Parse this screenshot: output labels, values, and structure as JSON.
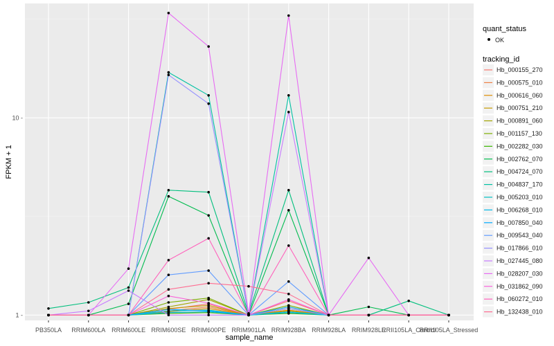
{
  "chart_data": {
    "type": "line",
    "xlabel": "sample_name",
    "ylabel": "FPKM + 1",
    "yscale": "log10",
    "ylim": [
      0.94,
      38
    ],
    "y_ticks": [
      1,
      10
    ],
    "y_tick_labels": [
      "1 -",
      "10 -"
    ],
    "categories": [
      "PB350LA",
      "RRIM600LA",
      "RRIM600LE",
      "RRIM600SE",
      "RRIM600PE",
      "RRIM901LA",
      "RRIM928BA",
      "RRIM928LA",
      "RRIM928LE",
      "RRII105LA_Control",
      "RRII105LA_Stressed"
    ],
    "legend": {
      "point_title": "quant_status",
      "point_label": "OK",
      "color_title": "tracking_id"
    },
    "series": [
      {
        "name": "Hb_000155_270",
        "color": "#F8766D",
        "values": [
          1,
          1,
          1,
          1.07,
          1.14,
          1,
          1.18,
          1,
          1,
          1,
          1
        ]
      },
      {
        "name": "Hb_000575_010",
        "color": "#EE8044",
        "values": [
          1,
          1,
          1,
          1.05,
          1.1,
          1,
          1.1,
          1,
          1,
          1,
          1
        ]
      },
      {
        "name": "Hb_000616_060",
        "color": "#DE8C00",
        "values": [
          1,
          1,
          1,
          1.04,
          1.08,
          1,
          1.06,
          1,
          1,
          1,
          1
        ]
      },
      {
        "name": "Hb_000751_210",
        "color": "#C49A00",
        "values": [
          1,
          1,
          1,
          1.08,
          1.12,
          1,
          1.05,
          1,
          1,
          1,
          1
        ]
      },
      {
        "name": "Hb_000891_060",
        "color": "#A3A500",
        "values": [
          1,
          1,
          1,
          1.1,
          1.2,
          1,
          1.08,
          1,
          1,
          1,
          1
        ]
      },
      {
        "name": "Hb_001157_130",
        "color": "#7CAE00",
        "values": [
          1,
          1,
          1,
          1.16,
          1.22,
          1,
          1.12,
          1,
          1,
          1,
          1
        ]
      },
      {
        "name": "Hb_002282_030",
        "color": "#39B600",
        "values": [
          1,
          1,
          1,
          1.02,
          1.03,
          1,
          1.02,
          1,
          1,
          1,
          1
        ]
      },
      {
        "name": "Hb_002762_070",
        "color": "#00BB4E",
        "values": [
          1,
          1,
          1.14,
          4,
          3.2,
          1,
          3.4,
          1,
          1.1,
          1,
          1
        ]
      },
      {
        "name": "Hb_004724_070",
        "color": "#00BF7D",
        "values": [
          1.08,
          1.16,
          1.38,
          4.3,
          4.2,
          1.02,
          4.3,
          1,
          1,
          1.18,
          1
        ]
      },
      {
        "name": "Hb_004837_170",
        "color": "#00C1A3",
        "values": [
          1,
          1,
          1,
          17,
          13,
          1,
          13,
          1,
          1,
          1,
          1
        ]
      },
      {
        "name": "Hb_005203_010",
        "color": "#00BFC4",
        "values": [
          1,
          1,
          1,
          1.05,
          1.06,
          1,
          1.04,
          1,
          1,
          1,
          1
        ]
      },
      {
        "name": "Hb_006268_010",
        "color": "#00B8E7",
        "values": [
          1,
          1,
          1,
          1.03,
          1.04,
          1,
          1.03,
          1,
          1,
          1,
          1
        ]
      },
      {
        "name": "Hb_007850_040",
        "color": "#00A9FF",
        "values": [
          1,
          1,
          1,
          1.07,
          1.05,
          1,
          1.1,
          1,
          1,
          1,
          1
        ]
      },
      {
        "name": "Hb_009543_040",
        "color": "#619CFF",
        "values": [
          1,
          1,
          1,
          1.6,
          1.68,
          1,
          1.48,
          1,
          1,
          1,
          1
        ]
      },
      {
        "name": "Hb_017866_010",
        "color": "#9590FF",
        "values": [
          1,
          1,
          1,
          16.5,
          11.8,
          1,
          1.08,
          1,
          1,
          1,
          1
        ]
      },
      {
        "name": "Hb_027445_080",
        "color": "#C77CFF",
        "values": [
          1,
          1.05,
          1.33,
          1,
          1,
          1,
          10.7,
          1,
          1,
          1,
          1
        ]
      },
      {
        "name": "Hb_028207_030",
        "color": "#E76BF3",
        "values": [
          1,
          1,
          1.72,
          34,
          23,
          1.02,
          33,
          1,
          1.95,
          1,
          1
        ]
      },
      {
        "name": "Hb_031862_090",
        "color": "#FA62DB",
        "values": [
          1,
          1,
          1,
          1.25,
          1.15,
          1,
          1.2,
          1,
          1,
          1,
          1
        ]
      },
      {
        "name": "Hb_060272_010",
        "color": "#FF62BC",
        "values": [
          1,
          1,
          1,
          1.9,
          2.45,
          1,
          2.25,
          1,
          1,
          1,
          1
        ]
      },
      {
        "name": "Hb_132438_010",
        "color": "#FF6C91",
        "values": [
          1,
          1,
          1,
          1.35,
          1.45,
          1.4,
          1.28,
          1,
          1,
          1,
          1
        ]
      }
    ]
  }
}
